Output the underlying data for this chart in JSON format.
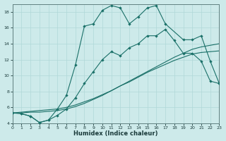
{
  "xlabel": "Humidex (Indice chaleur)",
  "bg_color": "#cdeaea",
  "line_color": "#1a7068",
  "xlim": [
    0,
    23
  ],
  "ylim": [
    4,
    19
  ],
  "yticks": [
    4,
    6,
    8,
    10,
    12,
    14,
    16,
    18
  ],
  "xticks": [
    0,
    1,
    2,
    3,
    4,
    5,
    6,
    7,
    8,
    9,
    10,
    11,
    12,
    13,
    14,
    15,
    16,
    17,
    18,
    19,
    20,
    21,
    22,
    23
  ],
  "line1_x": [
    0,
    1,
    2,
    3,
    4,
    5,
    6,
    7,
    8,
    9,
    10,
    11,
    12,
    13,
    14,
    15,
    16,
    17,
    18,
    19,
    20,
    21,
    22,
    23
  ],
  "line1_y": [
    5.3,
    5.4,
    5.5,
    5.6,
    5.7,
    5.8,
    6.0,
    6.3,
    6.7,
    7.1,
    7.6,
    8.1,
    8.7,
    9.3,
    9.9,
    10.5,
    11.1,
    11.7,
    12.3,
    12.8,
    13.3,
    13.6,
    13.8,
    14.0
  ],
  "line2_x": [
    0,
    1,
    2,
    3,
    4,
    5,
    6,
    7,
    8,
    9,
    10,
    11,
    12,
    13,
    14,
    15,
    16,
    17,
    18,
    19,
    20,
    21,
    22,
    23
  ],
  "line2_y": [
    5.3,
    5.3,
    5.4,
    5.4,
    5.5,
    5.6,
    5.8,
    6.1,
    6.5,
    7.0,
    7.5,
    8.1,
    8.7,
    9.2,
    9.8,
    10.4,
    10.9,
    11.4,
    11.9,
    12.3,
    12.7,
    12.9,
    13.0,
    13.1
  ],
  "line3_x": [
    0,
    1,
    2,
    3,
    4,
    5,
    6,
    7,
    8,
    9,
    10,
    11,
    12,
    13,
    14,
    15,
    16,
    17,
    18,
    19,
    20,
    21,
    22,
    23
  ],
  "line3_y": [
    5.3,
    5.2,
    4.9,
    4.1,
    4.4,
    5.0,
    5.8,
    7.2,
    9.0,
    10.5,
    12.0,
    13.0,
    12.5,
    13.5,
    14.0,
    15.0,
    15.0,
    15.8,
    14.4,
    12.8,
    12.8,
    11.8,
    9.3,
    9.0
  ],
  "line4_x": [
    1,
    2,
    3,
    4,
    5,
    6,
    7,
    8,
    9,
    10,
    11,
    12,
    13,
    14,
    15,
    16,
    17,
    19,
    20,
    21,
    22,
    23
  ],
  "line4_y": [
    5.2,
    4.9,
    4.1,
    4.4,
    5.8,
    7.5,
    11.3,
    16.2,
    16.5,
    18.2,
    18.8,
    18.5,
    16.5,
    17.4,
    18.5,
    18.8,
    16.5,
    14.5,
    14.5,
    15.0,
    11.8,
    9.0
  ]
}
